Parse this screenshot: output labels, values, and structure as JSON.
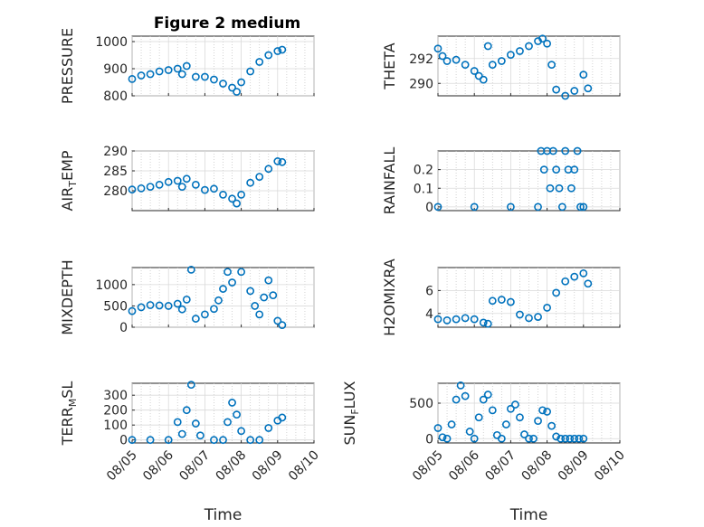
{
  "figure": {
    "title": "Figure 2 medium"
  },
  "style": {
    "marker_color": "#0072BD",
    "axis_color": "#262626"
  },
  "chart_data": [
    {
      "type": "scatter",
      "subplot": "top-left",
      "title": "Figure 2 medium",
      "ylabel": "PRESSURE",
      "xlabel": "",
      "ylim": [
        800,
        1020
      ],
      "yticks": [
        "800",
        "900",
        "1000"
      ],
      "ytick_values": [
        800,
        900,
        1000
      ],
      "xlim": [
        "08/05",
        "08/10"
      ],
      "grid": true,
      "show_xticklabels": false,
      "x": [
        "08/05 00:00",
        "08/05 06:00",
        "08/05 12:00",
        "08/05 18:00",
        "08/06 00:00",
        "08/06 06:00",
        "08/06 09:00",
        "08/06 12:00",
        "08/06 18:00",
        "08/07 00:00",
        "08/07 06:00",
        "08/07 12:00",
        "08/07 18:00",
        "08/07 21:00",
        "08/08 00:00",
        "08/08 06:00",
        "08/08 12:00",
        "08/08 18:00",
        "08/09 00:00",
        "08/09 03:00"
      ],
      "y": [
        862,
        875,
        880,
        890,
        895,
        900,
        880,
        910,
        870,
        870,
        860,
        845,
        830,
        815,
        850,
        890,
        925,
        950,
        965,
        970
      ]
    },
    {
      "type": "scatter",
      "subplot": "top-right",
      "ylabel": "THETA",
      "xlabel": "",
      "ylim": [
        289,
        293.8
      ],
      "yticks": [
        "290",
        "292"
      ],
      "ytick_values": [
        290,
        292
      ],
      "xlim": [
        "08/05",
        "08/10"
      ],
      "grid": true,
      "show_xticklabels": false,
      "x": [
        "08/05 00:00",
        "08/05 03:00",
        "08/05 06:00",
        "08/05 12:00",
        "08/05 18:00",
        "08/06 00:00",
        "08/06 03:00",
        "08/06 06:00",
        "08/06 09:00",
        "08/06 12:00",
        "08/06 18:00",
        "08/07 00:00",
        "08/07 06:00",
        "08/07 12:00",
        "08/07 18:00",
        "08/07 21:00",
        "08/08 00:00",
        "08/08 03:00",
        "08/08 06:00",
        "08/08 12:00",
        "08/08 18:00",
        "08/09 00:00",
        "08/09 03:00"
      ],
      "y": [
        292.8,
        292.2,
        291.8,
        291.9,
        291.5,
        291.0,
        290.6,
        290.3,
        293.0,
        291.5,
        291.8,
        292.3,
        292.6,
        293.0,
        293.4,
        293.6,
        293.2,
        291.5,
        289.5,
        289.0,
        289.4,
        290.7,
        289.6
      ]
    },
    {
      "type": "scatter",
      "subplot": "second-left",
      "ylabel": "AIR_TEMP",
      "xlabel": "",
      "ylim": [
        275,
        290
      ],
      "yticks": [
        "280",
        "285",
        "290"
      ],
      "ytick_values": [
        280,
        285,
        290
      ],
      "xlim": [
        "08/05",
        "08/10"
      ],
      "grid": true,
      "show_xticklabels": false,
      "x": [
        "08/05 00:00",
        "08/05 06:00",
        "08/05 12:00",
        "08/05 18:00",
        "08/06 00:00",
        "08/06 06:00",
        "08/06 09:00",
        "08/06 12:00",
        "08/06 18:00",
        "08/07 00:00",
        "08/07 06:00",
        "08/07 12:00",
        "08/07 18:00",
        "08/07 21:00",
        "08/08 00:00",
        "08/08 06:00",
        "08/08 12:00",
        "08/08 18:00",
        "08/09 00:00",
        "08/09 03:00"
      ],
      "y": [
        280.3,
        280.6,
        281.0,
        281.5,
        282.2,
        282.5,
        281.0,
        283.0,
        281.5,
        280.2,
        280.5,
        279.0,
        278.0,
        276.8,
        279.0,
        282.0,
        283.5,
        285.5,
        287.4,
        287.2
      ]
    },
    {
      "type": "scatter",
      "subplot": "second-right",
      "ylabel": "RAINFALL",
      "xlabel": "",
      "ylim": [
        -0.02,
        0.3
      ],
      "yticks": [
        "0",
        "0.1",
        "0.2"
      ],
      "ytick_values": [
        0,
        0.1,
        0.2
      ],
      "xlim": [
        "08/05",
        "08/10"
      ],
      "grid": true,
      "show_xticklabels": false,
      "x": [
        "08/05 00:00",
        "08/06 00:00",
        "08/07 00:00",
        "08/07 18:00",
        "08/07 20:00",
        "08/07 22:00",
        "08/08 00:00",
        "08/08 02:00",
        "08/08 04:00",
        "08/08 06:00",
        "08/08 08:00",
        "08/08 10:00",
        "08/08 12:00",
        "08/08 14:00",
        "08/08 16:00",
        "08/08 18:00",
        "08/08 20:00",
        "08/08 22:00",
        "08/09 00:00"
      ],
      "y": [
        0,
        0,
        0,
        0,
        0.3,
        0.2,
        0.3,
        0.1,
        0.3,
        0.2,
        0.1,
        0,
        0.3,
        0.2,
        0.1,
        0.2,
        0.3,
        0,
        0
      ]
    },
    {
      "type": "scatter",
      "subplot": "third-left",
      "ylabel": "MIXDEPTH",
      "xlabel": "",
      "ylim": [
        0,
        1400
      ],
      "yticks": [
        "0",
        "500",
        "1000"
      ],
      "ytick_values": [
        0,
        500,
        1000
      ],
      "xlim": [
        "08/05",
        "08/10"
      ],
      "grid": true,
      "show_xticklabels": false,
      "x": [
        "08/05 00:00",
        "08/05 06:00",
        "08/05 12:00",
        "08/05 18:00",
        "08/06 00:00",
        "08/06 06:00",
        "08/06 09:00",
        "08/06 12:00",
        "08/06 15:00",
        "08/06 18:00",
        "08/07 00:00",
        "08/07 06:00",
        "08/07 09:00",
        "08/07 12:00",
        "08/07 15:00",
        "08/07 18:00",
        "08/08 00:00",
        "08/08 06:00",
        "08/08 09:00",
        "08/08 12:00",
        "08/08 15:00",
        "08/08 18:00",
        "08/08 21:00",
        "08/09 00:00",
        "08/09 03:00"
      ],
      "y": [
        380,
        470,
        520,
        510,
        500,
        550,
        420,
        650,
        1350,
        200,
        300,
        430,
        630,
        900,
        1300,
        1050,
        1300,
        850,
        500,
        300,
        700,
        1100,
        750,
        150,
        50
      ]
    },
    {
      "type": "scatter",
      "subplot": "third-right",
      "ylabel": "H2OMIXRA",
      "xlabel": "",
      "ylim": [
        2.8,
        8
      ],
      "yticks": [
        "4",
        "6"
      ],
      "ytick_values": [
        4,
        6
      ],
      "xlim": [
        "08/05",
        "08/10"
      ],
      "grid": true,
      "show_xticklabels": false,
      "x": [
        "08/05 00:00",
        "08/05 06:00",
        "08/05 12:00",
        "08/05 18:00",
        "08/06 00:00",
        "08/06 06:00",
        "08/06 09:00",
        "08/06 12:00",
        "08/06 18:00",
        "08/07 00:00",
        "08/07 06:00",
        "08/07 12:00",
        "08/07 18:00",
        "08/08 00:00",
        "08/08 06:00",
        "08/08 12:00",
        "08/08 18:00",
        "08/09 00:00",
        "08/09 03:00"
      ],
      "y": [
        3.5,
        3.4,
        3.5,
        3.6,
        3.5,
        3.2,
        3.1,
        5.1,
        5.2,
        5.0,
        3.9,
        3.6,
        3.7,
        4.5,
        5.8,
        6.8,
        7.2,
        7.5,
        6.6
      ]
    },
    {
      "type": "scatter",
      "subplot": "bottom-left",
      "ylabel": "TERR_MSL",
      "xlabel": "Time",
      "ylim": [
        -20,
        380
      ],
      "yticks": [
        "0",
        "100",
        "200",
        "300"
      ],
      "ytick_values": [
        0,
        100,
        200,
        300
      ],
      "xlim": [
        "08/05",
        "08/10"
      ],
      "grid": true,
      "show_xticklabels": true,
      "xticks": [
        "08/05",
        "08/06",
        "08/07",
        "08/08",
        "08/09",
        "08/10"
      ],
      "x": [
        "08/05 00:00",
        "08/05 12:00",
        "08/06 00:00",
        "08/06 06:00",
        "08/06 09:00",
        "08/06 12:00",
        "08/06 15:00",
        "08/06 18:00",
        "08/06 21:00",
        "08/07 06:00",
        "08/07 12:00",
        "08/07 15:00",
        "08/07 18:00",
        "08/07 21:00",
        "08/08 00:00",
        "08/08 06:00",
        "08/08 12:00",
        "08/08 18:00",
        "08/09 00:00",
        "08/09 03:00"
      ],
      "y": [
        0,
        0,
        0,
        120,
        40,
        200,
        370,
        110,
        30,
        0,
        0,
        120,
        250,
        170,
        60,
        0,
        0,
        80,
        130,
        150
      ]
    },
    {
      "type": "scatter",
      "subplot": "bottom-right",
      "ylabel": "SUN_FLUX",
      "xlabel": "Time",
      "ylim": [
        -60,
        780
      ],
      "yticks": [
        "0",
        "500"
      ],
      "ytick_values": [
        0,
        500
      ],
      "xlim": [
        "08/05",
        "08/10"
      ],
      "grid": true,
      "show_xticklabels": true,
      "xticks": [
        "08/05",
        "08/06",
        "08/07",
        "08/08",
        "08/09",
        "08/10"
      ],
      "x": [
        "08/05 00:00",
        "08/05 03:00",
        "08/05 06:00",
        "08/05 09:00",
        "08/05 12:00",
        "08/05 15:00",
        "08/05 18:00",
        "08/05 21:00",
        "08/06 00:00",
        "08/06 03:00",
        "08/06 06:00",
        "08/06 09:00",
        "08/06 12:00",
        "08/06 15:00",
        "08/06 18:00",
        "08/06 21:00",
        "08/07 00:00",
        "08/07 03:00",
        "08/07 06:00",
        "08/07 09:00",
        "08/07 12:00",
        "08/07 15:00",
        "08/07 18:00",
        "08/07 21:00",
        "08/08 00:00",
        "08/08 03:00",
        "08/08 06:00",
        "08/08 09:00",
        "08/08 12:00",
        "08/08 15:00",
        "08/08 18:00",
        "08/08 21:00",
        "08/09 00:00"
      ],
      "y": [
        150,
        20,
        0,
        200,
        550,
        750,
        600,
        100,
        0,
        300,
        550,
        620,
        400,
        50,
        0,
        200,
        420,
        480,
        300,
        60,
        0,
        0,
        250,
        400,
        380,
        180,
        30,
        0,
        0,
        0,
        0,
        0,
        0
      ]
    }
  ]
}
